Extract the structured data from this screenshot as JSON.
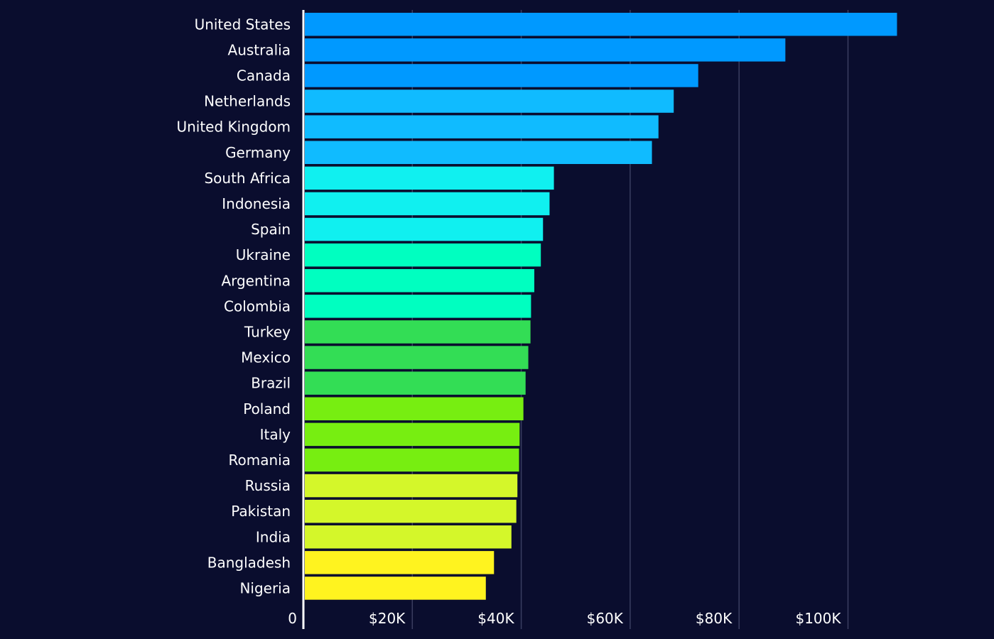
{
  "chart_data": {
    "type": "bar",
    "orientation": "horizontal",
    "title": "",
    "xlabel": "",
    "ylabel": "",
    "xlim": [
      0,
      115000
    ],
    "grid": true,
    "categories": [
      "United States",
      "Australia",
      "Canada",
      "Netherlands",
      "United Kingdom",
      "Germany",
      "South Africa",
      "Indonesia",
      "Spain",
      "Ukraine",
      "Argentina",
      "Colombia",
      "Turkey",
      "Mexico",
      "Brazil",
      "Poland",
      "Italy",
      "Romania",
      "Russia",
      "Pakistan",
      "India",
      "Bangladesh",
      "Nigeria"
    ],
    "values": [
      109000,
      88500,
      72500,
      68000,
      65200,
      64000,
      46000,
      45200,
      44000,
      43600,
      42400,
      41800,
      41700,
      41300,
      40800,
      40400,
      39700,
      39600,
      39300,
      39100,
      38200,
      35000,
      33500
    ],
    "colors": [
      "#0099ff",
      "#0099ff",
      "#0099ff",
      "#10bbff",
      "#10bbff",
      "#10bbff",
      "#10f0f0",
      "#10f0f0",
      "#10f0f0",
      "#00ffc0",
      "#00ffc0",
      "#00ffc0",
      "#33dd55",
      "#33dd55",
      "#33dd55",
      "#77ee11",
      "#77ee11",
      "#77ee11",
      "#d4f72a",
      "#d4f72a",
      "#d4f72a",
      "#fff31f",
      "#fff31f"
    ],
    "ticks": [
      0,
      20000,
      40000,
      60000,
      80000,
      100000
    ],
    "tick_labels": [
      "0",
      "$20K",
      "$40K",
      "$60K",
      "$80K",
      "$100K"
    ]
  }
}
